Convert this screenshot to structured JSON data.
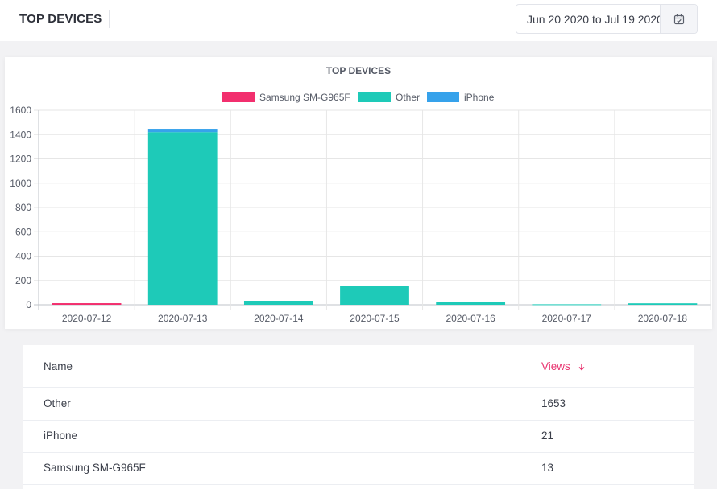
{
  "header": {
    "title": "TOP DEVICES",
    "date_range": "Jun 20 2020 to Jul 19 2020",
    "calendar_icon": "calendar-icon"
  },
  "colors": {
    "samsung": "#f22f6e",
    "other": "#1ecab8",
    "iphone": "#36a2eb",
    "accent": "#e8336f"
  },
  "chart_data": {
    "type": "bar",
    "stacked": true,
    "title": "TOP DEVICES",
    "categories": [
      "2020-07-12",
      "2020-07-13",
      "2020-07-14",
      "2020-07-15",
      "2020-07-16",
      "2020-07-17",
      "2020-07-18"
    ],
    "series": [
      {
        "name": "Samsung SM-G965F",
        "color": "#f22f6e",
        "values": [
          13,
          0,
          0,
          0,
          0,
          0,
          0
        ]
      },
      {
        "name": "Other",
        "color": "#1ecab8",
        "values": [
          0,
          1420,
          33,
          155,
          20,
          4,
          12
        ]
      },
      {
        "name": "iPhone",
        "color": "#36a2eb",
        "values": [
          0,
          21,
          0,
          0,
          0,
          0,
          0
        ]
      }
    ],
    "yticks": [
      "0",
      "200",
      "400",
      "600",
      "800",
      "1000",
      "1200",
      "1400",
      "1600"
    ],
    "ylim": [
      0,
      1600
    ],
    "legend": "top",
    "grid": true
  },
  "table": {
    "columns": {
      "name": "Name",
      "views": "Views"
    },
    "sort_icon": "arrow-down-icon",
    "rows": [
      {
        "name": "Other",
        "views": "1653"
      },
      {
        "name": "iPhone",
        "views": "21"
      },
      {
        "name": "Samsung SM-G965F",
        "views": "13"
      }
    ]
  }
}
